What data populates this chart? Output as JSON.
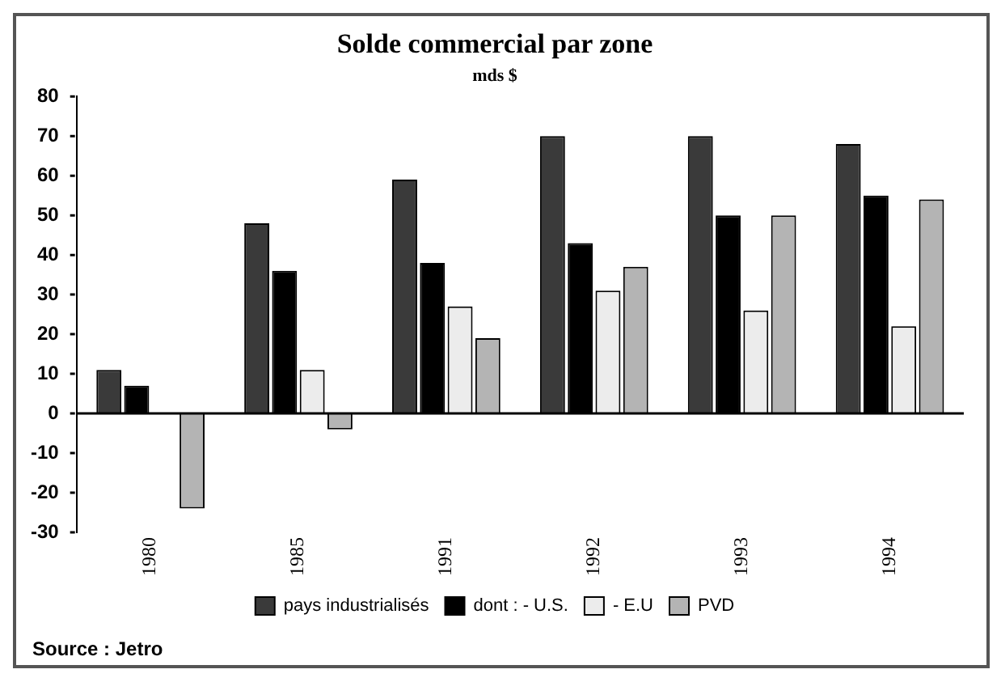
{
  "chart_data": {
    "type": "bar",
    "title": "Solde commercial par zone",
    "subtitle": "mds $",
    "categories": [
      "1980",
      "1985",
      "1991",
      "1992",
      "1993",
      "1994"
    ],
    "series": [
      {
        "name": "pays industrialisés",
        "color": "#3a3a3a",
        "values": [
          11,
          48,
          59,
          70,
          70,
          68
        ]
      },
      {
        "name": "dont : - U.S.",
        "color": "#000000",
        "values": [
          7,
          36,
          38,
          43,
          50,
          55
        ]
      },
      {
        "name": "- E.U",
        "color": "#ececec",
        "values": [
          null,
          11,
          27,
          31,
          26,
          22
        ]
      },
      {
        "name": "PVD",
        "color": "#b4b4b4",
        "values": [
          -24,
          -4,
          19,
          37,
          50,
          54
        ]
      }
    ],
    "ylim": [
      -30,
      80
    ],
    "yticks": [
      -30,
      -20,
      -10,
      0,
      10,
      20,
      30,
      40,
      50,
      60,
      70,
      80
    ],
    "legend": "bottom",
    "annotations": [
      "Source : Jetro"
    ]
  }
}
